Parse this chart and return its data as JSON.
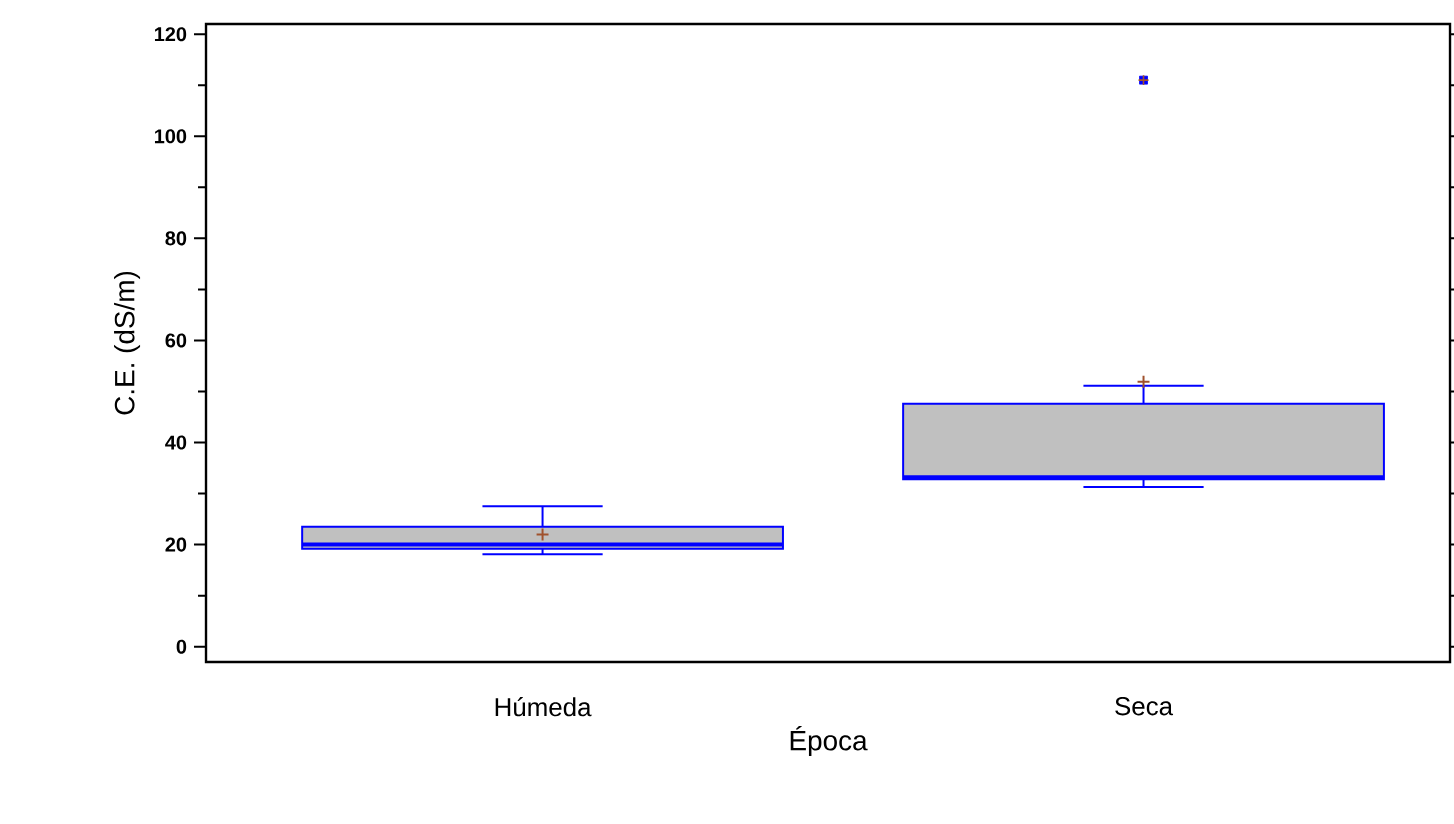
{
  "chart_data": {
    "type": "box",
    "xlabel": "Época",
    "ylabel": "C.E.  (dS/m)",
    "categories": [
      "Húmeda",
      "Seca"
    ],
    "color": "#0000ff",
    "boxes": [
      {
        "low": 18.1,
        "q1": 19.2,
        "median": 20,
        "q3": 23.5,
        "high": 27.5,
        "mean": 22
      },
      {
        "low": 31.3,
        "q1": 32.8,
        "median": 33.2,
        "q3": 47.6,
        "high": 51.1,
        "mean": 51.9,
        "outliers": [
          111
        ]
      }
    ],
    "ylim": [
      -3,
      122
    ],
    "yticks": [
      0,
      20,
      40,
      60,
      80,
      100,
      120
    ],
    "grid": false
  }
}
